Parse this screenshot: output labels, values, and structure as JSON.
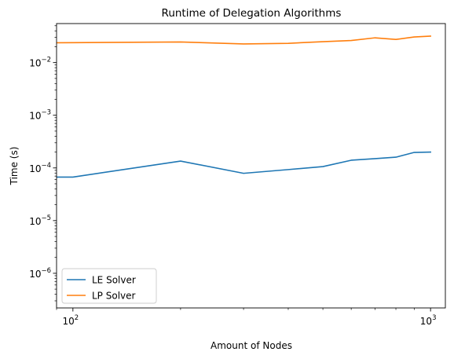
{
  "chart_data": {
    "type": "line",
    "title": "Runtime of Delegation Algorithms",
    "xlabel": "Amount of Nodes",
    "ylabel": "Time (s)",
    "xscale": "log",
    "yscale": "log",
    "xlim": [
      90,
      1100
    ],
    "ylim": [
      2.2e-07,
      0.055
    ],
    "x_ticks": [
      {
        "value": 100,
        "base": "10",
        "exp": "2"
      },
      {
        "value": 1000,
        "base": "10",
        "exp": "3"
      }
    ],
    "y_ticks": [
      {
        "value": 1e-06,
        "base": "10",
        "exp": "−6"
      },
      {
        "value": 1e-05,
        "base": "10",
        "exp": "−5"
      },
      {
        "value": 0.0001,
        "base": "10",
        "exp": "−4"
      },
      {
        "value": 0.001,
        "base": "10",
        "exp": "−3"
      },
      {
        "value": 0.01,
        "base": "10",
        "exp": "−2"
      }
    ],
    "grid": false,
    "legend_position": "lower-left",
    "series": [
      {
        "name": "LE Solver",
        "color": "#1f77b4",
        "x": [
          90,
          100,
          200,
          300,
          400,
          500,
          600,
          700,
          800,
          900,
          1000
        ],
        "y": [
          6.7e-05,
          6.7e-05,
          0.000135,
          7.9e-05,
          9.3e-05,
          0.000106,
          0.00014,
          0.00015,
          0.00016,
          0.000197,
          0.0002
        ]
      },
      {
        "name": "LP Solver",
        "color": "#ff7f0e",
        "x": [
          90,
          100,
          200,
          300,
          400,
          500,
          600,
          700,
          800,
          900,
          1000
        ],
        "y": [
          0.0238,
          0.0239,
          0.0246,
          0.0226,
          0.0232,
          0.0249,
          0.0262,
          0.0295,
          0.0275,
          0.0306,
          0.0318
        ]
      }
    ]
  }
}
